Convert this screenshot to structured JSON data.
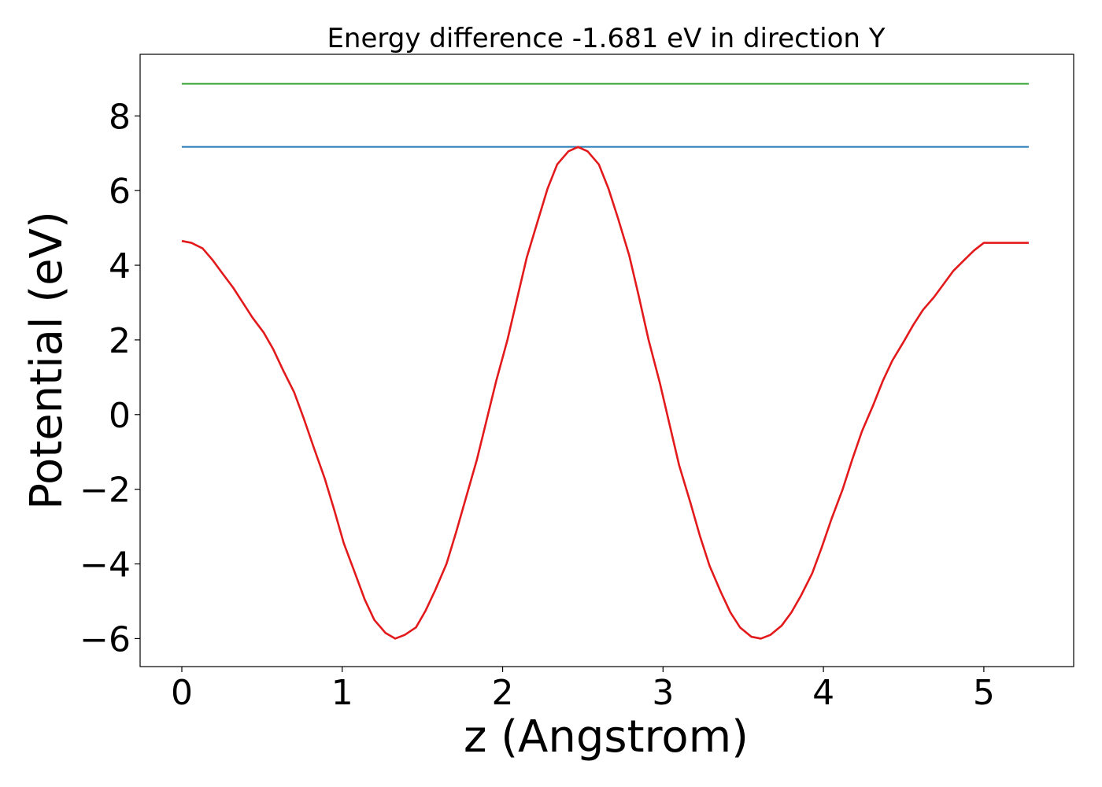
{
  "chart_data": {
    "type": "line",
    "title": "Energy difference -1.681 eV in direction Y",
    "xlabel": "z (Angstrom)",
    "ylabel": "Potential (eV)",
    "xlim": [
      -0.26,
      5.56
    ],
    "ylim": [
      -6.75,
      9.65
    ],
    "xticks": [
      0,
      1,
      2,
      3,
      4,
      5
    ],
    "yticks": [
      -6,
      -4,
      -2,
      0,
      2,
      4,
      6,
      8
    ],
    "grid": false,
    "legend": "none",
    "series": [
      {
        "color": "#2ca02c",
        "x": [
          0,
          5.28
        ],
        "y": [
          8.86,
          8.86
        ]
      },
      {
        "color": "#1f77b4",
        "x": [
          0,
          5.28
        ],
        "y": [
          7.17,
          7.17
        ]
      },
      {
        "color": "#e31a1c",
        "x": [
          0,
          0.06,
          0.13,
          0.19,
          0.25,
          0.32,
          0.38,
          0.44,
          0.51,
          0.57,
          0.63,
          0.7,
          0.76,
          0.82,
          0.89,
          0.95,
          1.01,
          1.08,
          1.14,
          1.2,
          1.27,
          1.33,
          1.39,
          1.46,
          1.52,
          1.58,
          1.65,
          1.71,
          1.77,
          1.84,
          1.9,
          1.96,
          2.03,
          2.09,
          2.15,
          2.22,
          2.28,
          2.34,
          2.41,
          2.47,
          2.53,
          2.6,
          2.66,
          2.72,
          2.79,
          2.85,
          2.91,
          2.98,
          3.04,
          3.1,
          3.17,
          3.23,
          3.29,
          3.36,
          3.42,
          3.48,
          3.55,
          3.61,
          3.67,
          3.74,
          3.8,
          3.86,
          3.93,
          3.99,
          4.05,
          4.12,
          4.18,
          4.24,
          4.31,
          4.37,
          4.43,
          4.5,
          4.56,
          4.62,
          4.69,
          4.75,
          4.81,
          4.88,
          4.94,
          5.0,
          5.07,
          5.13,
          5.19,
          5.26,
          5.28
        ],
        "y": [
          4.65,
          4.6,
          4.45,
          4.15,
          3.8,
          3.4,
          3.0,
          2.6,
          2.2,
          1.75,
          1.2,
          0.6,
          -0.1,
          -0.85,
          -1.7,
          -2.55,
          -3.45,
          -4.25,
          -4.95,
          -5.5,
          -5.85,
          -6.0,
          -5.9,
          -5.7,
          -5.25,
          -4.7,
          -4.0,
          -3.15,
          -2.25,
          -1.2,
          -0.15,
          0.9,
          2.0,
          3.1,
          4.2,
          5.2,
          6.05,
          6.7,
          7.05,
          7.17,
          7.05,
          6.7,
          6.05,
          5.25,
          4.25,
          3.15,
          2.0,
          0.85,
          -0.25,
          -1.35,
          -2.35,
          -3.25,
          -4.05,
          -4.75,
          -5.3,
          -5.7,
          -5.95,
          -6.0,
          -5.9,
          -5.65,
          -5.3,
          -4.85,
          -4.25,
          -3.55,
          -2.8,
          -2.0,
          -1.2,
          -0.45,
          0.25,
          0.9,
          1.45,
          1.95,
          2.4,
          2.8,
          3.15,
          3.5,
          3.85,
          4.15,
          4.4,
          4.6,
          4.6,
          4.6,
          4.6,
          4.6,
          4.6
        ]
      }
    ]
  }
}
